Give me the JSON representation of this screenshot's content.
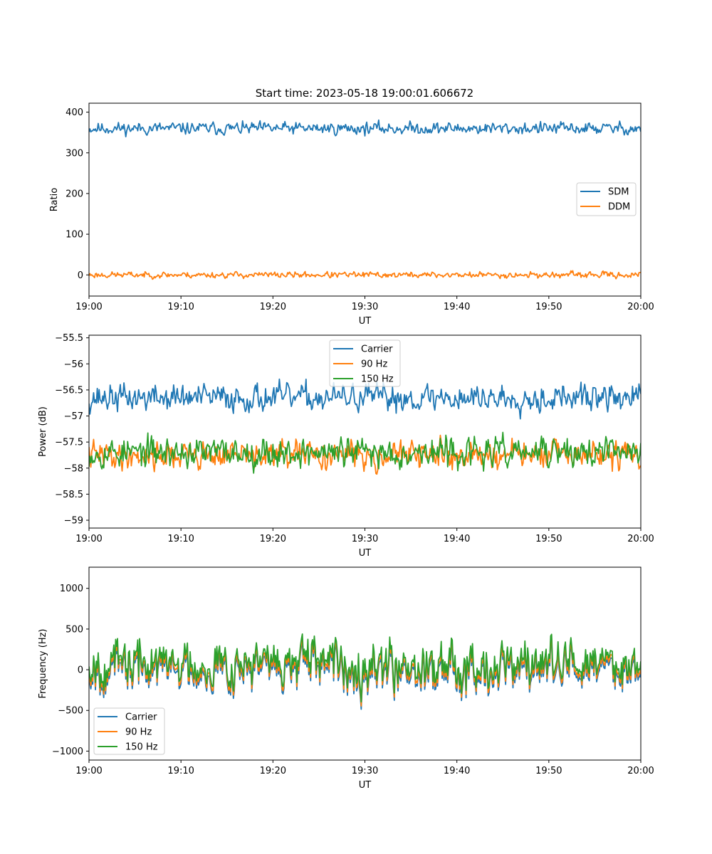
{
  "figure": {
    "title": "Start time: 2023-05-18 19:00:01.606672"
  },
  "chart_data": [
    {
      "type": "line",
      "title": "Start time: 2023-05-18 19:00:01.606672",
      "xlabel": "UT",
      "ylabel": "Ratio",
      "x_ticks": [
        "19:00",
        "19:10",
        "19:20",
        "19:30",
        "19:40",
        "19:50",
        "20:00"
      ],
      "xlim": [
        "19:00",
        "20:00"
      ],
      "y_ticks": [
        0,
        100,
        200,
        300,
        400
      ],
      "ylim": [
        -52,
        422
      ],
      "grid": false,
      "legend": "center-right",
      "series": [
        {
          "name": "SDM",
          "color": "#1f77b4",
          "mean": 360,
          "amplitude": 20,
          "noise_seed": 11
        },
        {
          "name": "DDM",
          "color": "#ff7f0e",
          "mean": 0,
          "amplitude": 10,
          "noise_seed": 23
        }
      ]
    },
    {
      "type": "line",
      "title": "",
      "xlabel": "UT",
      "ylabel": "Power (dB)",
      "x_ticks": [
        "19:00",
        "19:10",
        "19:20",
        "19:30",
        "19:40",
        "19:50",
        "20:00"
      ],
      "xlim": [
        "19:00",
        "20:00"
      ],
      "y_ticks": [
        -55.5,
        -56.0,
        -56.5,
        -57.0,
        -57.5,
        -58.0,
        -58.5,
        -59.0
      ],
      "ylim": [
        -59.15,
        -55.45
      ],
      "grid": false,
      "legend": "upper-center",
      "series": [
        {
          "name": "Carrier",
          "color": "#1f77b4",
          "mean": -56.65,
          "amplitude": 0.35,
          "noise_seed": 37
        },
        {
          "name": "90 Hz",
          "color": "#ff7f0e",
          "mean": -57.75,
          "amplitude": 0.35,
          "noise_seed": 41
        },
        {
          "name": "150 Hz",
          "color": "#2ca02c",
          "mean": -57.7,
          "amplitude": 0.38,
          "noise_seed": 53
        }
      ]
    },
    {
      "type": "line",
      "title": "",
      "xlabel": "UT",
      "ylabel": "Frequency (Hz)",
      "x_ticks": [
        "19:00",
        "19:10",
        "19:20",
        "19:30",
        "19:40",
        "19:50",
        "20:00"
      ],
      "xlim": [
        "19:00",
        "20:00"
      ],
      "y_ticks": [
        1000,
        500,
        0,
        -500,
        -1000
      ],
      "ylim": [
        -1110,
        1260
      ],
      "grid": false,
      "legend": "lower-left",
      "series": [
        {
          "name": "Carrier",
          "color": "#1f77b4",
          "mean": 0,
          "amplitude": 380,
          "noise_seed": 67
        },
        {
          "name": "90 Hz",
          "color": "#ff7f0e",
          "mean": 40,
          "amplitude": 380,
          "noise_seed": 67
        },
        {
          "name": "150 Hz",
          "color": "#2ca02c",
          "mean": 90,
          "amplitude": 380,
          "noise_seed": 67
        }
      ]
    }
  ]
}
